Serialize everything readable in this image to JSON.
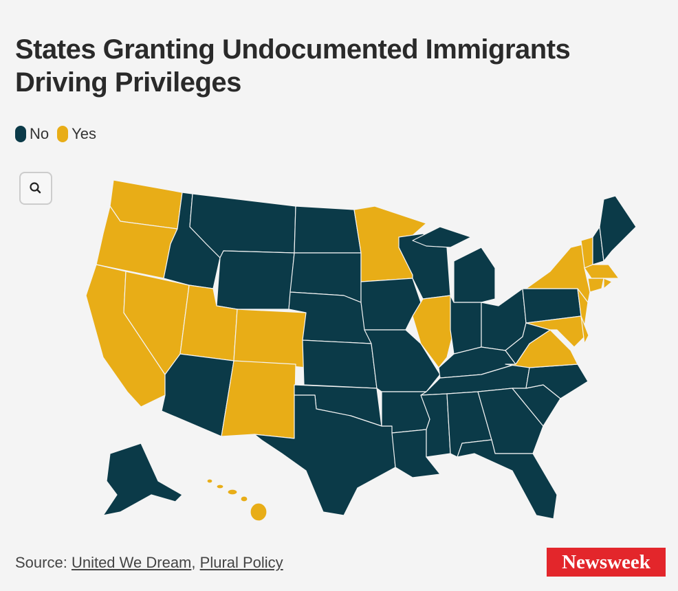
{
  "title": "States Granting Undocumented Immigrants Driving Privileges",
  "legend": [
    {
      "label": "No",
      "color": "#0b3a48"
    },
    {
      "label": "Yes",
      "color": "#e8ad17"
    }
  ],
  "source": {
    "label": "Source:",
    "links": [
      "United We Dream",
      "Plural Policy"
    ],
    "separator": ","
  },
  "logo": "Newsweek"
}
